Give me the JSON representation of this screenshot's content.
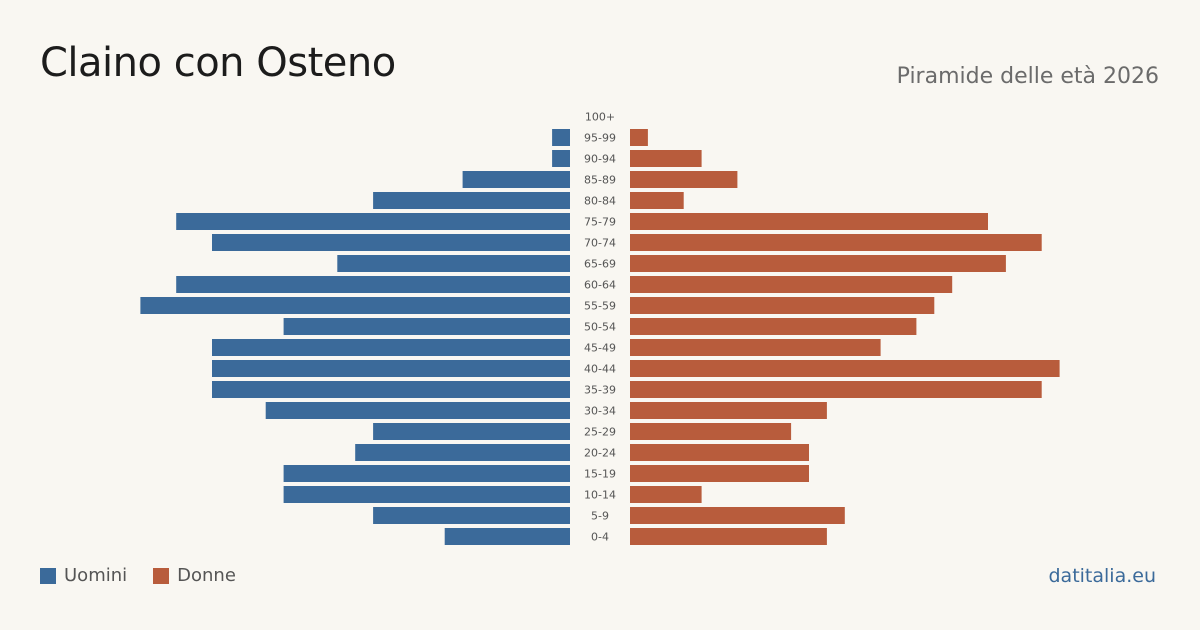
{
  "title": "Claino con Osteno",
  "subtitle": "Piramide delle età 2026",
  "brand": "datitalia.eu",
  "legend": {
    "men": "Uomini",
    "women": "Donne"
  },
  "colors": {
    "men": "#3b6a9a",
    "women": "#b85c3c",
    "background": "#f9f7f2"
  },
  "chart_data": {
    "type": "bar",
    "orientation": "horizontal-pyramid",
    "categories": [
      "100+",
      "95-99",
      "90-94",
      "85-89",
      "80-84",
      "75-79",
      "70-74",
      "65-69",
      "60-64",
      "55-59",
      "50-54",
      "45-49",
      "40-44",
      "35-39",
      "30-34",
      "25-29",
      "20-24",
      "15-19",
      "10-14",
      "5-9",
      "0-4"
    ],
    "series": [
      {
        "name": "Uomini",
        "values": [
          0,
          1,
          1,
          6,
          11,
          22,
          20,
          13,
          22,
          24,
          16,
          20,
          20,
          20,
          17,
          11,
          12,
          16,
          16,
          11,
          7
        ]
      },
      {
        "name": "Donne",
        "values": [
          0,
          1,
          4,
          6,
          3,
          20,
          23,
          21,
          18,
          17,
          16,
          14,
          24,
          23,
          11,
          9,
          10,
          10,
          4,
          12,
          11
        ]
      }
    ],
    "legend_position": "bottom-left",
    "grid": false
  }
}
